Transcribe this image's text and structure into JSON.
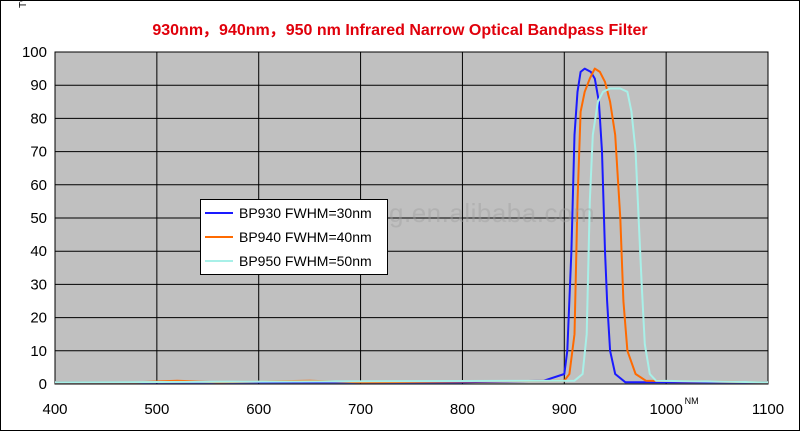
{
  "chart_data": {
    "type": "line",
    "title": "930nm，940nm，950 nm Infrared Narrow Optical Bandpass Filter",
    "ylabel": "T%",
    "xlabel": "NM",
    "xlim": [
      400,
      1100
    ],
    "ylim": [
      0,
      100
    ],
    "x_ticks": [
      "400",
      "500",
      "600",
      "700",
      "800",
      "900",
      "1000",
      "1100"
    ],
    "y_ticks": [
      "0",
      "10",
      "20",
      "30",
      "40",
      "50",
      "60",
      "70",
      "80",
      "90",
      "100"
    ],
    "grid": true,
    "legend_position": "left-middle",
    "series": [
      {
        "name": "BP930 FWHM=30nm",
        "color": "#1a1aff",
        "points": [
          [
            400,
            0.5
          ],
          [
            800,
            0.5
          ],
          [
            850,
            0.8
          ],
          [
            880,
            1
          ],
          [
            900,
            3
          ],
          [
            903,
            10
          ],
          [
            907,
            40
          ],
          [
            910,
            75
          ],
          [
            913,
            88
          ],
          [
            916,
            94
          ],
          [
            920,
            95
          ],
          [
            926,
            94
          ],
          [
            930,
            92
          ],
          [
            934,
            85
          ],
          [
            937,
            70
          ],
          [
            940,
            40
          ],
          [
            942,
            25
          ],
          [
            945,
            10
          ],
          [
            950,
            3
          ],
          [
            960,
            0.5
          ],
          [
            1100,
            0.5
          ]
        ]
      },
      {
        "name": "BP940 FWHM=40nm",
        "color": "#ff6a00",
        "points": [
          [
            400,
            0.5
          ],
          [
            480,
            0.5
          ],
          [
            520,
            1
          ],
          [
            560,
            0.5
          ],
          [
            650,
            1
          ],
          [
            700,
            0.5
          ],
          [
            900,
            1
          ],
          [
            905,
            3
          ],
          [
            910,
            15
          ],
          [
            913,
            55
          ],
          [
            916,
            82
          ],
          [
            920,
            88
          ],
          [
            925,
            92
          ],
          [
            930,
            95
          ],
          [
            935,
            94
          ],
          [
            940,
            91
          ],
          [
            945,
            85
          ],
          [
            950,
            75
          ],
          [
            955,
            50
          ],
          [
            958,
            25
          ],
          [
            962,
            10
          ],
          [
            970,
            3
          ],
          [
            980,
            1
          ],
          [
            1100,
            0.5
          ]
        ]
      },
      {
        "name": "BP950 FWHM=50nm",
        "color": "#a8f0e8",
        "points": [
          [
            400,
            0.5
          ],
          [
            910,
            1
          ],
          [
            918,
            3
          ],
          [
            922,
            15
          ],
          [
            925,
            55
          ],
          [
            928,
            75
          ],
          [
            933,
            85
          ],
          [
            938,
            88
          ],
          [
            945,
            89
          ],
          [
            955,
            89
          ],
          [
            962,
            88
          ],
          [
            966,
            82
          ],
          [
            970,
            70
          ],
          [
            973,
            50
          ],
          [
            976,
            30
          ],
          [
            979,
            12
          ],
          [
            984,
            3
          ],
          [
            990,
            1
          ],
          [
            1100,
            0.5
          ]
        ]
      }
    ]
  },
  "watermark": "opticalcoating.en.alibaba.com",
  "colors": {
    "title": "#e0000b",
    "plot_background": "#c0c0c0"
  }
}
